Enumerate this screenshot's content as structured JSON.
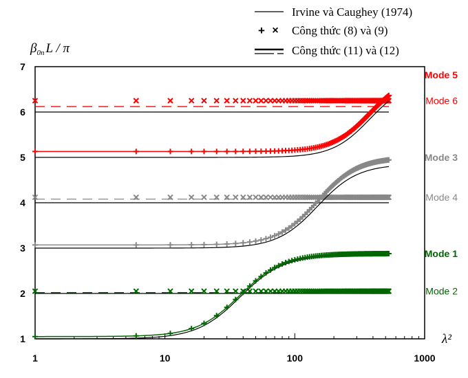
{
  "chart_data": {
    "type": "line",
    "xscale": "log",
    "xlim": [
      1,
      1000
    ],
    "ylim": [
      1,
      7
    ],
    "xticks": [
      "1",
      "10",
      "100",
      "1000"
    ],
    "yticks": [
      "1",
      "2",
      "3",
      "4",
      "5",
      "6",
      "7"
    ],
    "xlabel": "λ²",
    "ylabel": "β0nL / π",
    "ylabel_main": "β",
    "ylabel_sub": "0n",
    "ylabel_rest": "L / π",
    "grid": false,
    "legend_position": "top-right",
    "legend": [
      {
        "label": "Irvine và Caughey (1974)",
        "style": "solid"
      },
      {
        "label": "Công thức (8) và (9)",
        "style": "markers"
      },
      {
        "label": "Công thức (11) và (12)",
        "style": "dashed"
      }
    ],
    "modes": [
      {
        "name": "Mode 5",
        "color": "#ff0000",
        "bold": true,
        "symmetric": true,
        "start": 5.13,
        "end": 6.82,
        "irvine_start": 5.0,
        "irvine_end": 6.7,
        "center": 380,
        "k": 3.0
      },
      {
        "name": "Mode 6",
        "color": "#ff0000",
        "bold": false,
        "symmetric": false,
        "level": 6.25,
        "dashed": 6.12,
        "irvine": 6.0
      },
      {
        "name": "Mode 3",
        "color": "#888888",
        "bold": true,
        "symmetric": true,
        "start": 3.07,
        "end": 5.0,
        "irvine_start": 3.0,
        "irvine_end": 4.85,
        "center": 150,
        "k": 2.8
      },
      {
        "name": "Mode 4",
        "color": "#888888",
        "bold": false,
        "symmetric": false,
        "level": 4.12,
        "dashed": 4.08,
        "irvine": 4.0
      },
      {
        "name": "Mode 1",
        "color": "#006600",
        "bold": true,
        "symmetric": true,
        "start": 1.05,
        "end": 2.88,
        "irvine_start": 1.0,
        "irvine_end": 2.85,
        "center": 38,
        "k": 2.6
      },
      {
        "name": "Mode 2",
        "color": "#006600",
        "bold": false,
        "symmetric": false,
        "level": 2.05,
        "dashed": 2.02,
        "irvine": 2.0
      }
    ]
  }
}
